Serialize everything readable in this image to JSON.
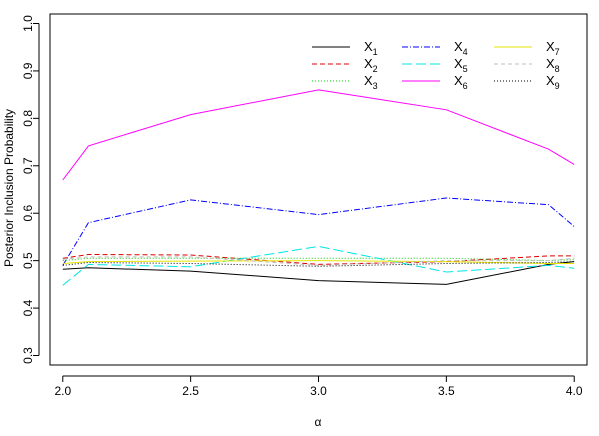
{
  "chart_data": {
    "type": "line",
    "xlabel": "α",
    "ylabel": "Posterior Inclusion Probability",
    "xlim": [
      1.95,
      4.05
    ],
    "ylim": [
      0.28,
      1.02
    ],
    "xticks": [
      2.0,
      2.5,
      3.0,
      3.5,
      4.0
    ],
    "xtick_labels": [
      "2.0",
      "2.5",
      "3.0",
      "3.5",
      "4.0"
    ],
    "yticks": [
      0.3,
      0.4,
      0.5,
      0.6,
      0.7,
      0.8,
      0.9,
      1.0
    ],
    "ytick_labels": [
      "0.3",
      "0.4",
      "0.5",
      "0.6",
      "0.7",
      "0.8",
      "0.9",
      "1.0"
    ],
    "x": [
      2.0,
      2.1,
      2.5,
      3.0,
      3.5,
      3.9,
      4.0
    ],
    "legend_placement": "top-right",
    "grid": false,
    "series": [
      {
        "name": "X",
        "sub": "1",
        "color": "#000000",
        "dash": "",
        "values": [
          0.482,
          0.485,
          0.478,
          0.458,
          0.45,
          0.492,
          0.498
        ]
      },
      {
        "name": "X",
        "sub": "2",
        "color": "#dd0000",
        "dash": "5,3",
        "values": [
          0.505,
          0.513,
          0.512,
          0.492,
          0.498,
          0.51,
          0.51
        ]
      },
      {
        "name": "X",
        "sub": "3",
        "color": "#00cc00",
        "dash": "1,2",
        "values": [
          0.5,
          0.505,
          0.505,
          0.505,
          0.505,
          0.5,
          0.502
        ]
      },
      {
        "name": "X",
        "sub": "4",
        "color": "#0000ff",
        "dash": "6,2,1,2",
        "values": [
          0.49,
          0.58,
          0.628,
          0.597,
          0.632,
          0.618,
          0.572
        ]
      },
      {
        "name": "X",
        "sub": "5",
        "color": "#00e5e5",
        "dash": "10,4",
        "values": [
          0.448,
          0.492,
          0.487,
          0.53,
          0.476,
          0.49,
          0.484
        ]
      },
      {
        "name": "X",
        "sub": "6",
        "color": "#ff00ff",
        "dash": "",
        "values": [
          0.67,
          0.742,
          0.808,
          0.86,
          0.818,
          0.735,
          0.703
        ]
      },
      {
        "name": "X",
        "sub": "7",
        "color": "#e5e500",
        "dash": "",
        "values": [
          0.494,
          0.498,
          0.499,
          0.5,
          0.498,
          0.494,
          0.494
        ]
      },
      {
        "name": "X",
        "sub": "8",
        "color": "#bebebe",
        "dash": "4,3",
        "values": [
          0.503,
          0.508,
          0.508,
          0.49,
          0.5,
          0.5,
          0.505
        ]
      },
      {
        "name": "X",
        "sub": "9",
        "color": "#000000",
        "dash": "1,2",
        "values": [
          0.49,
          0.496,
          0.494,
          0.488,
          0.494,
          0.496,
          0.498
        ]
      }
    ]
  }
}
